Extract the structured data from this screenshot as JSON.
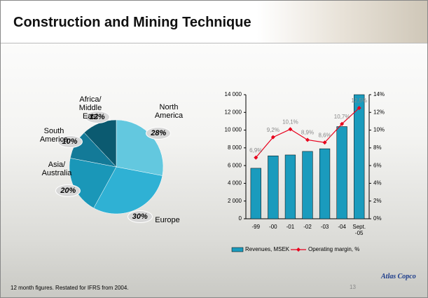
{
  "slide": {
    "title": "Construction and Mining Technique",
    "footnote": "12 month figures. Restated for IFRS from 2004.",
    "page_number": "13",
    "logo": "Atlas Copco"
  },
  "chart_data": [
    {
      "type": "pie",
      "categories": [
        "North America",
        "Europe",
        "Asia/ Australia",
        "South America",
        "Africa/ Middle East"
      ],
      "values": [
        28,
        30,
        20,
        10,
        12
      ],
      "value_labels": [
        "28%",
        "30%",
        "20%",
        "10%",
        "12%"
      ],
      "colors": [
        "#63c8df",
        "#2fb1d4",
        "#1a97b8",
        "#137a98",
        "#0b5a70"
      ]
    },
    {
      "type": "bar_line",
      "categories": [
        "-99",
        "-00",
        "-01",
        "-02",
        "-03",
        "-04",
        "Sept. -05"
      ],
      "series": [
        {
          "name": "Revenues, MSEK",
          "color": "#1a9bbd",
          "values": [
            5700,
            7100,
            7200,
            7600,
            7900,
            10400,
            14000
          ]
        },
        {
          "name": "Operating margin, %",
          "color": "#e8001c",
          "axis": "y2",
          "values": [
            6.9,
            9.2,
            10.1,
            8.9,
            8.6,
            10.7,
            12.5
          ],
          "value_labels": [
            "6,9%",
            "9,2%",
            "10,1%",
            "8,9%",
            "8,6%",
            "10,7%",
            "12,5%"
          ]
        }
      ],
      "ylim": [
        0,
        14000
      ],
      "yticks": [
        0,
        {
          "value": 2000,
          "label": "2 000"
        },
        {
          "value": 4000,
          "label": "4 000"
        },
        {
          "value": 6000,
          "label": "6 000"
        },
        {
          "value": 8000,
          "label": "8 000"
        },
        {
          "value": 10000,
          "label": "10 000"
        },
        {
          "value": 12000,
          "label": "12 000"
        },
        {
          "value": 14000,
          "label": "14 000"
        }
      ],
      "y2lim": [
        0,
        14
      ],
      "y2ticks": [
        {
          "value": 0,
          "label": "0%"
        },
        {
          "value": 2,
          "label": "2%"
        },
        {
          "value": 4,
          "label": "4%"
        },
        {
          "value": 6,
          "label": "6%"
        },
        {
          "value": 8,
          "label": "8%"
        },
        {
          "value": 10,
          "label": "10%"
        },
        {
          "value": 12,
          "label": "12%"
        },
        {
          "value": 14,
          "label": "14%"
        }
      ]
    }
  ]
}
